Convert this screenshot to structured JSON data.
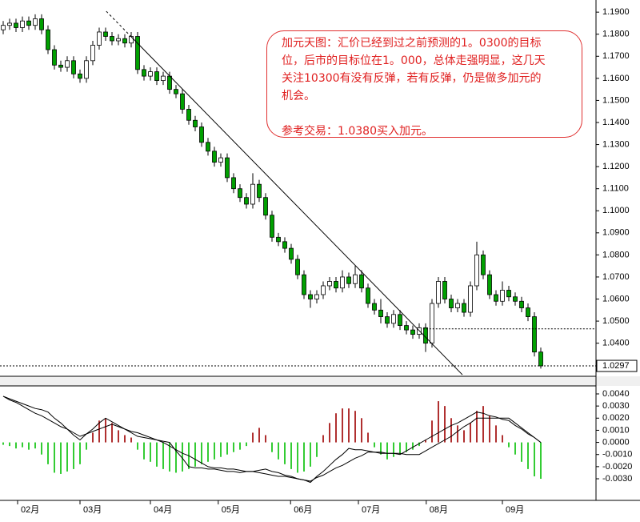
{
  "chart_data": [
    {
      "type": "candlestick",
      "xlim": [
        -0.5,
        92.625
      ],
      "ylim": [
        1.025,
        1.1955
      ],
      "yticks": [
        {
          "value": 1.19,
          "label": "1.1900"
        },
        {
          "value": 1.18,
          "label": "1.1800"
        },
        {
          "value": 1.17,
          "label": "1.1700"
        },
        {
          "value": 1.16,
          "label": "1.1600"
        },
        {
          "value": 1.15,
          "label": "1.1500"
        },
        {
          "value": 1.14,
          "label": "1.1400"
        },
        {
          "value": 1.13,
          "label": "1.1300"
        },
        {
          "value": 1.12,
          "label": "1.1200"
        },
        {
          "value": 1.11,
          "label": "1.1100"
        },
        {
          "value": 1.1,
          "label": "1.1000"
        },
        {
          "value": 1.09,
          "label": "1.0900"
        },
        {
          "value": 1.08,
          "label": "1.0800"
        },
        {
          "value": 1.07,
          "label": "1.0700"
        },
        {
          "value": 1.06,
          "label": "1.0600"
        },
        {
          "value": 1.05,
          "label": "1.0500"
        },
        {
          "value": 1.04,
          "label": "1.0400"
        }
      ],
      "up_color": "#ffffff",
      "down_color": "#00a000",
      "last_price": 1.0297,
      "support_line": {
        "value": 1.0465,
        "from": 65.6
      },
      "trendline": {
        "from": [
          16.1,
          1.1904
        ],
        "to": [
          71.75,
          1.0257
        ]
      },
      "annotation": {
        "paragraphs": [
          [
            "加元天图：汇价已经到过之前预测的1。0300的目标",
            "位，后市的目标位在1。000，总体走强明显，这几天",
            "关注10300有没有反弹，若有反弹，仍是做多加元的",
            "机会。"
          ],
          [
            "参考交易：1.0380买入加元。"
          ]
        ]
      },
      "ohlc": [
        [
          1.182,
          1.186,
          1.18,
          1.184
        ],
        [
          1.184,
          1.187,
          1.182,
          1.185
        ],
        [
          1.185,
          1.187,
          1.181,
          1.183
        ],
        [
          1.183,
          1.188,
          1.181,
          1.186
        ],
        [
          1.186,
          1.188,
          1.182,
          1.184
        ],
        [
          1.184,
          1.189,
          1.182,
          1.187
        ],
        [
          1.187,
          1.189,
          1.18,
          1.182
        ],
        [
          1.182,
          1.184,
          1.171,
          1.173
        ],
        [
          1.173,
          1.175,
          1.164,
          1.166
        ],
        [
          1.166,
          1.168,
          1.163,
          1.165
        ],
        [
          1.165,
          1.17,
          1.163,
          1.168
        ],
        [
          1.168,
          1.17,
          1.16,
          1.162
        ],
        [
          1.162,
          1.164,
          1.158,
          1.16
        ],
        [
          1.16,
          1.17,
          1.158,
          1.168
        ],
        [
          1.168,
          1.177,
          1.166,
          1.175
        ],
        [
          1.175,
          1.183,
          1.173,
          1.181
        ],
        [
          1.181,
          1.183,
          1.177,
          1.179
        ],
        [
          1.179,
          1.181,
          1.175,
          1.177
        ],
        [
          1.177,
          1.18,
          1.175,
          1.178
        ],
        [
          1.178,
          1.18,
          1.174,
          1.176
        ],
        [
          1.176,
          1.181,
          1.174,
          1.179
        ],
        [
          1.179,
          1.181,
          1.162,
          1.164
        ],
        [
          1.164,
          1.166,
          1.159,
          1.161
        ],
        [
          1.161,
          1.165,
          1.159,
          1.163
        ],
        [
          1.163,
          1.165,
          1.157,
          1.159
        ],
        [
          1.159,
          1.163,
          1.157,
          1.161
        ],
        [
          1.161,
          1.163,
          1.153,
          1.155
        ],
        [
          1.155,
          1.157,
          1.151,
          1.153
        ],
        [
          1.153,
          1.155,
          1.144,
          1.146
        ],
        [
          1.146,
          1.148,
          1.139,
          1.141
        ],
        [
          1.141,
          1.143,
          1.136,
          1.138
        ],
        [
          1.138,
          1.14,
          1.129,
          1.131
        ],
        [
          1.131,
          1.133,
          1.125,
          1.127
        ],
        [
          1.127,
          1.129,
          1.12,
          1.122
        ],
        [
          1.122,
          1.126,
          1.12,
          1.124
        ],
        [
          1.124,
          1.126,
          1.113,
          1.115
        ],
        [
          1.115,
          1.117,
          1.108,
          1.11
        ],
        [
          1.11,
          1.112,
          1.104,
          1.106
        ],
        [
          1.106,
          1.108,
          1.101,
          1.103
        ],
        [
          1.103,
          1.117,
          1.101,
          1.112
        ],
        [
          1.112,
          1.114,
          1.104,
          1.106
        ],
        [
          1.106,
          1.108,
          1.096,
          1.098
        ],
        [
          1.098,
          1.1,
          1.086,
          1.088
        ],
        [
          1.088,
          1.09,
          1.084,
          1.086
        ],
        [
          1.086,
          1.088,
          1.081,
          1.083
        ],
        [
          1.083,
          1.085,
          1.076,
          1.078
        ],
        [
          1.078,
          1.08,
          1.069,
          1.071
        ],
        [
          1.071,
          1.073,
          1.06,
          1.062
        ],
        [
          1.062,
          1.064,
          1.056,
          1.06
        ],
        [
          1.06,
          1.064,
          1.058,
          1.062
        ],
        [
          1.062,
          1.068,
          1.06,
          1.066
        ],
        [
          1.066,
          1.07,
          1.064,
          1.068
        ],
        [
          1.068,
          1.07,
          1.063,
          1.065
        ],
        [
          1.065,
          1.073,
          1.063,
          1.07
        ],
        [
          1.07,
          1.072,
          1.065,
          1.067
        ],
        [
          1.067,
          1.075,
          1.065,
          1.071
        ],
        [
          1.071,
          1.073,
          1.063,
          1.065
        ],
        [
          1.065,
          1.067,
          1.056,
          1.058
        ],
        [
          1.058,
          1.06,
          1.053,
          1.055
        ],
        [
          1.055,
          1.06,
          1.049,
          1.052
        ],
        [
          1.052,
          1.054,
          1.047,
          1.049
        ],
        [
          1.049,
          1.055,
          1.047,
          1.053
        ],
        [
          1.053,
          1.055,
          1.046,
          1.048
        ],
        [
          1.048,
          1.05,
          1.044,
          1.046
        ],
        [
          1.046,
          1.048,
          1.042,
          1.044
        ],
        [
          1.044,
          1.049,
          1.042,
          1.047
        ],
        [
          1.047,
          1.049,
          1.036,
          1.04
        ],
        [
          1.04,
          1.06,
          1.038,
          1.058
        ],
        [
          1.058,
          1.07,
          1.056,
          1.068
        ],
        [
          1.068,
          1.07,
          1.058,
          1.06
        ],
        [
          1.06,
          1.062,
          1.054,
          1.056
        ],
        [
          1.056,
          1.06,
          1.054,
          1.058
        ],
        [
          1.058,
          1.06,
          1.052,
          1.054
        ],
        [
          1.054,
          1.068,
          1.052,
          1.066
        ],
        [
          1.066,
          1.086,
          1.064,
          1.08
        ],
        [
          1.08,
          1.082,
          1.069,
          1.071
        ],
        [
          1.071,
          1.073,
          1.06,
          1.062
        ],
        [
          1.062,
          1.064,
          1.057,
          1.059
        ],
        [
          1.059,
          1.068,
          1.057,
          1.064
        ],
        [
          1.064,
          1.066,
          1.059,
          1.061
        ],
        [
          1.061,
          1.063,
          1.057,
          1.059
        ],
        [
          1.059,
          1.061,
          1.054,
          1.056
        ],
        [
          1.056,
          1.058,
          1.05,
          1.052
        ],
        [
          1.052,
          1.054,
          1.034,
          1.036
        ],
        [
          1.036,
          1.038,
          1.0285,
          1.0297
        ]
      ]
    },
    {
      "type": "macd",
      "xlim": [
        -0.5,
        92.625
      ],
      "ylim": [
        -0.00366,
        0.00466
      ],
      "yticks": [
        {
          "value": 0.004,
          "label": "0.0040"
        },
        {
          "value": 0.003,
          "label": "0.0030"
        },
        {
          "value": 0.002,
          "label": "0.0020"
        },
        {
          "value": 0.001,
          "label": "0.0010"
        },
        {
          "value": 0,
          "label": "0.0000"
        },
        {
          "value": -0.001,
          "label": "-0.0010"
        },
        {
          "value": -0.002,
          "label": "-0.0020"
        },
        {
          "value": -0.003,
          "label": "-0.0030"
        }
      ],
      "xticks": [
        {
          "value": 2.25,
          "label": "02月"
        },
        {
          "value": 12,
          "label": "03月"
        },
        {
          "value": 23,
          "label": "04月"
        },
        {
          "value": 33.6,
          "label": "05月"
        },
        {
          "value": 44.9,
          "label": "06月"
        },
        {
          "value": 55.5,
          "label": "07月"
        },
        {
          "value": 66.1,
          "label": "08月"
        },
        {
          "value": 78,
          "label": "09月"
        }
      ],
      "pos_color": "#b03030",
      "neg_color": "#33cc33",
      "line_color": "#000000",
      "histogram": [
        -0.0002,
        -0.0003,
        -0.0005,
        -0.0004,
        -0.0006,
        -0.0005,
        -0.001,
        -0.0018,
        -0.0025,
        -0.0026,
        -0.0024,
        -0.0022,
        -0.0018,
        -0.0006,
        0.0008,
        0.0018,
        0.002,
        0.0016,
        0.001,
        0.0006,
        0.0004,
        -0.0006,
        -0.0014,
        -0.0016,
        -0.002,
        -0.0022,
        -0.0024,
        -0.0025,
        -0.0024,
        -0.0022,
        -0.002,
        -0.0018,
        -0.0016,
        -0.0014,
        -0.0012,
        -0.001,
        -0.0008,
        -0.0006,
        -0.0003,
        0.0008,
        0.0012,
        0.0006,
        -0.0008,
        -0.0014,
        -0.0018,
        -0.0022,
        -0.0025,
        -0.0024,
        -0.002,
        -0.0012,
        0.0006,
        0.0016,
        0.0024,
        0.0028,
        0.0028,
        0.0026,
        0.002,
        0.0008,
        -0.0004,
        -0.001,
        -0.0014,
        -0.0012,
        -0.001,
        -0.0008,
        -0.0006,
        -0.0003,
        0.0002,
        0.0018,
        0.0034,
        0.003,
        0.002,
        0.0014,
        0.001,
        0.0016,
        0.0026,
        0.003,
        0.0022,
        0.0014,
        0.0006,
        -0.0004,
        -0.001,
        -0.0016,
        -0.0022,
        -0.0028,
        -0.003
      ],
      "macd": [
        0.0038,
        0.0036,
        0.0034,
        0.0032,
        0.003,
        0.0028,
        0.0027,
        0.0025,
        0.002,
        0.0016,
        0.0011,
        0.0006,
        0.0002,
        0.0007,
        0.0011,
        0.0016,
        0.002,
        0.0017,
        0.0014,
        0.0011,
        0.0008,
        0.0005,
        0.0004,
        0.0003,
        0.0002,
        0.0001,
        0,
        -0.0007,
        -0.0013,
        -0.002,
        -0.0021,
        -0.0021,
        -0.0022,
        -0.0022,
        -0.0023,
        -0.0024,
        -0.0024,
        -0.0025,
        -0.0024,
        -0.0024,
        -0.0023,
        -0.0022,
        -0.0024,
        -0.0025,
        -0.0027,
        -0.0028,
        -0.003,
        -0.0031,
        -0.0033,
        -0.0028,
        -0.0024,
        -0.0019,
        -0.0014,
        -0.001,
        -0.0005,
        -0.0006,
        -0.0006,
        -0.0007,
        -0.0008,
        -0.0008,
        -0.0009,
        -0.0009,
        -0.001,
        -0.0007,
        -0.0004,
        -0.0001,
        0.0002,
        0.0005,
        0.0008,
        0.0011,
        0.0014,
        0.0016,
        0.0019,
        0.0022,
        0.0025,
        0.0024,
        0.0022,
        0.0021,
        0.0019,
        0.0018,
        0.0014,
        0.0011,
        0.0007,
        0.0004,
        0
      ],
      "signal": [
        0.0038,
        0.0035,
        0.0033,
        0.003,
        0.0027,
        0.0024,
        0.0022,
        0.0019,
        0.0016,
        0.0013,
        0.0011,
        0.0008,
        0.0005,
        0.0007,
        0.0009,
        0.0011,
        0.0013,
        0.0015,
        0.0013,
        0.0011,
        0.0009,
        0.0008,
        0.0006,
        0.0004,
        0.0002,
        0,
        -0.0003,
        -0.0006,
        -0.0009,
        -0.0011,
        -0.0014,
        -0.0017,
        -0.002,
        -0.0021,
        -0.0021,
        -0.0022,
        -0.0022,
        -0.0023,
        -0.0024,
        -0.0024,
        -0.0025,
        -0.0026,
        -0.0027,
        -0.0028,
        -0.0028,
        -0.0029,
        -0.003,
        -0.0031,
        -0.0032,
        -0.0029,
        -0.0027,
        -0.0024,
        -0.0021,
        -0.0019,
        -0.0016,
        -0.0013,
        -0.0011,
        -0.0008,
        -0.0008,
        -0.0009,
        -0.0009,
        -0.0009,
        -0.0009,
        -0.001,
        -0.001,
        -0.001,
        -0.0007,
        -0.0004,
        -0.0001,
        0.0002,
        0.0005,
        0.0009,
        0.0013,
        0.0016,
        0.002,
        0.002,
        0.002,
        0.002,
        0.002,
        0.002,
        0.0016,
        0.0012,
        0.0008,
        0.0004,
        0
      ]
    }
  ]
}
